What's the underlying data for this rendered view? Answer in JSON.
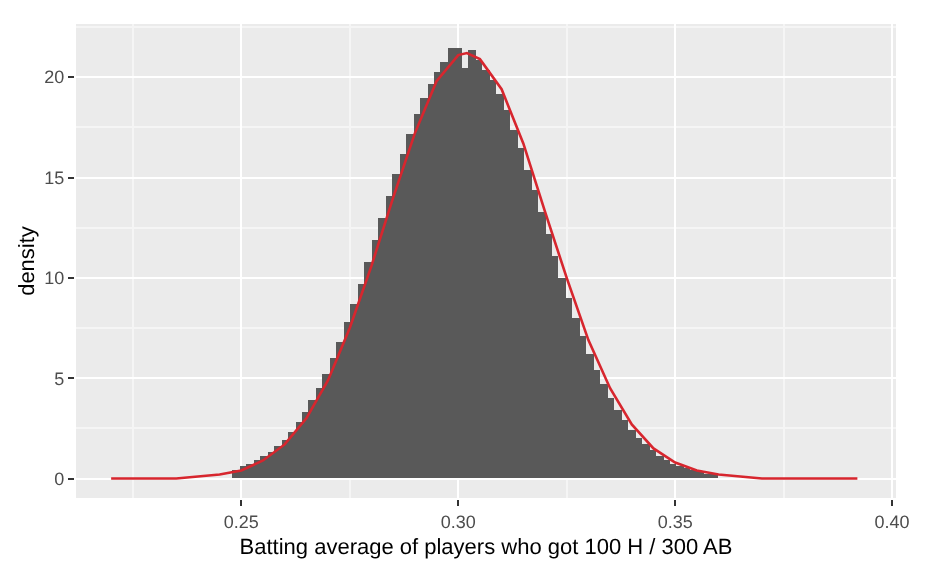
{
  "chart_data": {
    "type": "histogram",
    "xlabel": "Batting average of players who got 100 H / 300 AB",
    "ylabel": "density",
    "xlim": [
      0.2119,
      0.4009
    ],
    "ylim": [
      -0.97,
      22.65
    ],
    "xticks": [
      0.25,
      {
        "value": 0.3,
        "label": "0.30"
      },
      0.35,
      {
        "value": 0.4,
        "label": "0.40"
      }
    ],
    "yticks": [
      0,
      5,
      10,
      15,
      20
    ],
    "grid": true,
    "series": [
      {
        "color": "#595959",
        "bins": [
          0.248,
          0.2496,
          0.2512,
          0.2528,
          0.2544,
          0.256,
          0.2576,
          0.2592,
          0.2608,
          0.2624,
          0.264,
          0.2656,
          0.2672,
          0.2688,
          0.2704,
          0.272,
          0.2736,
          0.2752,
          0.2768,
          0.2784,
          0.28,
          0.2816,
          0.2832,
          0.2848,
          0.2864,
          0.288,
          0.2896,
          0.2912,
          0.2928,
          0.2944,
          0.296,
          0.2976,
          0.2992,
          0.3008,
          0.3024,
          0.304,
          0.3056,
          0.3072,
          0.3088,
          0.3104,
          0.312,
          0.3136,
          0.3152,
          0.3168,
          0.3184,
          0.32,
          0.3216,
          0.3232,
          0.3248,
          0.3264,
          0.328,
          0.3296,
          0.3312,
          0.3328,
          0.3344,
          0.336,
          0.3376,
          0.3392,
          0.3408,
          0.3424,
          0.344,
          0.3456,
          0.3472,
          0.3488,
          0.3504,
          0.352,
          0.3536,
          0.3552,
          0.3568,
          0.3584,
          0.36
        ],
        "values": [
          0.4,
          0.6,
          0.7,
          0.9,
          1.1,
          1.3,
          1.6,
          1.9,
          2.3,
          2.8,
          3.3,
          3.9,
          4.5,
          5.2,
          6.0,
          6.8,
          7.8,
          8.7,
          9.7,
          10.8,
          11.9,
          13.0,
          14.1,
          15.2,
          16.2,
          17.2,
          18.2,
          19.0,
          19.7,
          20.3,
          20.8,
          21.5,
          21.5,
          20.5,
          21.4,
          20.9,
          20.4,
          19.9,
          19.2,
          18.4,
          17.4,
          16.5,
          15.4,
          14.4,
          13.3,
          12.2,
          11.1,
          10.0,
          9.0,
          8.0,
          7.1,
          6.2,
          5.4,
          4.7,
          4.0,
          3.4,
          2.9,
          2.4,
          2.0,
          1.7,
          1.4,
          1.1,
          0.9,
          0.7,
          0.6,
          0.5,
          0.4,
          0.3,
          0.2,
          0.2
        ]
      },
      {
        "type": "line",
        "color": "#d7262e",
        "line_style": "solid",
        "x": [
          0.22,
          0.225,
          0.23,
          0.235,
          0.24,
          0.245,
          0.25,
          0.255,
          0.26,
          0.265,
          0.27,
          0.275,
          0.28,
          0.285,
          0.29,
          0.295,
          0.3,
          0.302,
          0.305,
          0.31,
          0.315,
          0.32,
          0.325,
          0.33,
          0.335,
          0.34,
          0.345,
          0.35,
          0.355,
          0.36,
          0.365,
          0.37,
          0.375,
          0.38,
          0.385,
          0.392
        ],
        "values": [
          0.0,
          0.0,
          0.0,
          0.0,
          0.1,
          0.2,
          0.4,
          0.9,
          1.7,
          3.0,
          4.9,
          7.5,
          10.6,
          14.0,
          17.2,
          19.8,
          21.1,
          21.2,
          20.9,
          19.4,
          16.7,
          13.3,
          10.0,
          6.9,
          4.5,
          2.7,
          1.5,
          0.8,
          0.4,
          0.2,
          0.1,
          0.0,
          0.0,
          0.0,
          0.0,
          0.0
        ]
      }
    ]
  }
}
